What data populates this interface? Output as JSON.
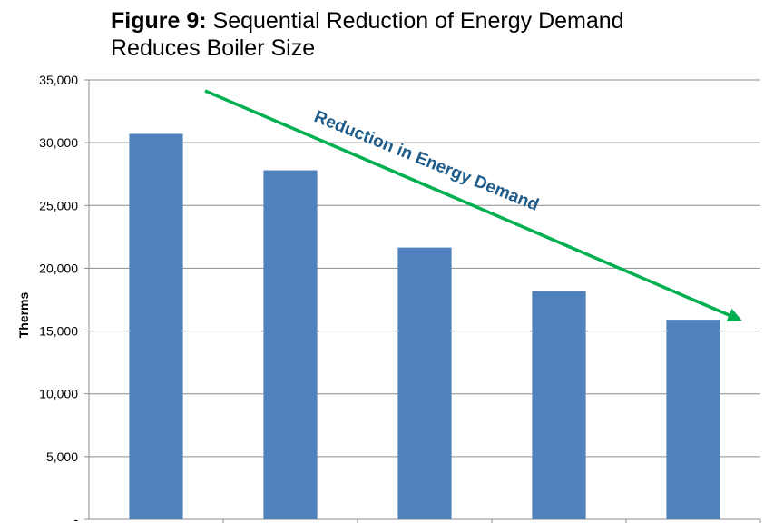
{
  "title": {
    "bold_part": "Figure 9:",
    "line1": " Sequential Reduction of Energy Demand",
    "line2": "Reduces Boiler Size"
  },
  "chart_data": {
    "type": "bar",
    "categories": [
      "",
      "",
      "",
      "",
      ""
    ],
    "values": [
      30700,
      27800,
      21650,
      18200,
      15900
    ],
    "ylabel": "Therms",
    "xlabel": "",
    "ylim": [
      0,
      35000
    ],
    "yticks": [
      0,
      5000,
      10000,
      15000,
      20000,
      25000,
      30000,
      35000
    ],
    "ytick_labels": [
      "-",
      "5,000",
      "10,000",
      "15,000",
      "20,000",
      "25,000",
      "30,000",
      "35,000"
    ],
    "grid": "horizontal",
    "bar_color": "#4F81BD",
    "annotation": {
      "text": "Reduction in Energy Demand",
      "color": "#1F5C8A",
      "arrow_color": "#00B050"
    }
  }
}
